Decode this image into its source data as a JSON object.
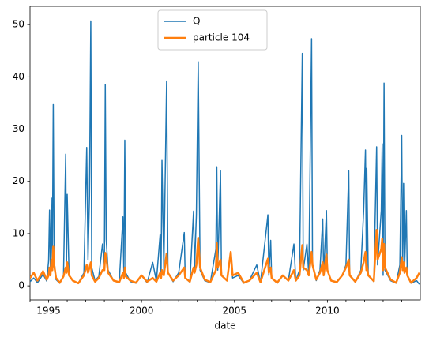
{
  "chart_data": {
    "type": "line",
    "xlabel": "date",
    "legend": "upper center",
    "x": [
      1994.0,
      1994.2,
      1994.4,
      1994.7,
      1994.9,
      1995.0,
      1995.05,
      1995.1,
      1995.15,
      1995.2,
      1995.25,
      1995.3,
      1995.4,
      1995.6,
      1995.8,
      1995.92,
      1995.96,
      1996.0,
      1996.1,
      1996.3,
      1996.6,
      1996.9,
      1997.05,
      1997.12,
      1997.2,
      1997.27,
      1997.32,
      1997.5,
      1997.7,
      1997.9,
      1998.0,
      1998.05,
      1998.1,
      1998.2,
      1998.5,
      1998.8,
      1999.0,
      1999.05,
      1999.1,
      1999.15,
      1999.4,
      1999.7,
      2000.0,
      2000.3,
      2000.6,
      2000.8,
      2001.0,
      2001.05,
      2001.1,
      2001.2,
      2001.35,
      2001.42,
      2001.7,
      2002.0,
      2002.3,
      2002.35,
      2002.6,
      2002.8,
      2002.85,
      2002.95,
      2003.05,
      2003.15,
      2003.4,
      2003.7,
      2004.0,
      2004.05,
      2004.1,
      2004.25,
      2004.3,
      2004.6,
      2004.8,
      2004.9,
      2005.2,
      2005.5,
      2005.8,
      2006.2,
      2006.4,
      2006.8,
      2006.85,
      2006.95,
      2007.0,
      2007.3,
      2007.6,
      2007.9,
      2008.2,
      2008.3,
      2008.5,
      2008.65,
      2008.7,
      2008.9,
      2009.0,
      2009.15,
      2009.2,
      2009.4,
      2009.6,
      2009.75,
      2009.8,
      2009.95,
      2010.0,
      2010.2,
      2010.5,
      2010.8,
      2011.0,
      2011.15,
      2011.2,
      2011.5,
      2011.8,
      2011.95,
      2012.05,
      2012.1,
      2012.12,
      2012.2,
      2012.5,
      2012.65,
      2012.7,
      2012.9,
      2012.95,
      2013.0,
      2013.05,
      2013.1,
      2013.4,
      2013.7,
      2013.9,
      2014.0,
      2014.05,
      2014.1,
      2014.15,
      2014.25,
      2014.3,
      2014.5,
      2014.8,
      2014.95
    ],
    "series": [
      {
        "name": "Q",
        "color": "#1f77b4",
        "values": [
          0.8,
          1.5,
          0.6,
          2.2,
          0.9,
          4.8,
          14.5,
          2.0,
          16.8,
          3.0,
          34.7,
          5.0,
          1.2,
          0.5,
          1.8,
          25.2,
          3.0,
          17.5,
          2.0,
          1.0,
          0.5,
          2.5,
          26.5,
          5.0,
          17.3,
          50.7,
          3.5,
          1.0,
          1.8,
          8.0,
          4.0,
          38.5,
          8.8,
          3.0,
          1.0,
          0.6,
          13.2,
          2.0,
          27.9,
          2.5,
          0.8,
          0.5,
          2.0,
          0.6,
          4.5,
          0.9,
          9.8,
          1.5,
          24.0,
          3.0,
          39.2,
          2.5,
          0.8,
          2.5,
          10.2,
          1.5,
          0.7,
          14.3,
          3.0,
          13.5,
          42.9,
          3.0,
          1.0,
          0.6,
          7.0,
          22.8,
          3.0,
          22.0,
          2.0,
          1.0,
          6.5,
          1.5,
          2.0,
          0.5,
          1.0,
          4.0,
          0.6,
          13.6,
          2.0,
          8.7,
          1.5,
          0.5,
          2.0,
          1.0,
          8.0,
          1.0,
          3.0,
          44.5,
          3.0,
          8.0,
          2.0,
          47.3,
          4.0,
          1.0,
          3.0,
          12.8,
          2.0,
          14.4,
          3.0,
          1.0,
          0.6,
          2.0,
          4.0,
          22.0,
          2.0,
          0.7,
          3.0,
          14.2,
          26.0,
          3.0,
          22.5,
          2.0,
          0.8,
          26.6,
          4.0,
          14.4,
          27.2,
          2.0,
          38.8,
          3.0,
          1.0,
          0.5,
          4.0,
          28.8,
          3.0,
          19.6,
          3.0,
          14.4,
          2.0,
          0.5,
          1.0,
          0.3
        ]
      },
      {
        "name": "particle 104",
        "color": "#ff7f0e",
        "values": [
          1.5,
          2.5,
          1.0,
          2.8,
          1.2,
          2.0,
          3.5,
          2.0,
          5.0,
          3.0,
          7.5,
          4.0,
          1.5,
          0.6,
          1.8,
          3.5,
          2.5,
          4.5,
          2.0,
          1.0,
          0.5,
          2.0,
          4.0,
          2.5,
          3.5,
          4.5,
          2.0,
          0.8,
          1.5,
          3.0,
          3.0,
          6.3,
          5.5,
          2.5,
          1.0,
          0.7,
          2.5,
          1.5,
          3.5,
          1.8,
          1.0,
          0.6,
          2.0,
          0.8,
          1.5,
          0.8,
          2.5,
          1.5,
          3.0,
          2.0,
          6.2,
          2.5,
          1.0,
          2.0,
          3.5,
          1.5,
          0.8,
          3.5,
          2.5,
          4.0,
          9.2,
          3.5,
          1.2,
          0.7,
          3.0,
          8.2,
          3.5,
          5.0,
          2.0,
          1.0,
          6.5,
          2.0,
          2.5,
          0.6,
          1.0,
          2.5,
          0.7,
          5.2,
          2.5,
          3.5,
          1.5,
          0.6,
          2.0,
          1.0,
          3.0,
          1.0,
          2.0,
          7.8,
          3.5,
          3.0,
          2.0,
          6.5,
          4.0,
          1.2,
          2.5,
          4.5,
          2.0,
          6.0,
          3.0,
          1.0,
          0.7,
          2.0,
          3.5,
          5.0,
          2.0,
          0.8,
          2.5,
          4.5,
          6.5,
          3.0,
          4.0,
          2.0,
          0.9,
          10.7,
          5.0,
          7.0,
          9.0,
          3.0,
          8.0,
          3.5,
          1.2,
          0.6,
          2.5,
          5.5,
          3.0,
          4.5,
          2.5,
          3.5,
          2.0,
          0.6,
          1.5,
          2.5
        ]
      }
    ],
    "xlim": [
      1994.0,
      2015.0
    ],
    "xticks": [
      1995,
      2000,
      2005,
      2010
    ],
    "xminorticks": [
      1994,
      1996,
      1997,
      1998,
      1999,
      2001,
      2002,
      2003,
      2004,
      2006,
      2007,
      2008,
      2009,
      2011,
      2012,
      2013,
      2014
    ],
    "ylim": [
      -2.7,
      53.5
    ],
    "yticks": [
      0,
      10,
      20,
      30,
      40,
      50
    ]
  }
}
